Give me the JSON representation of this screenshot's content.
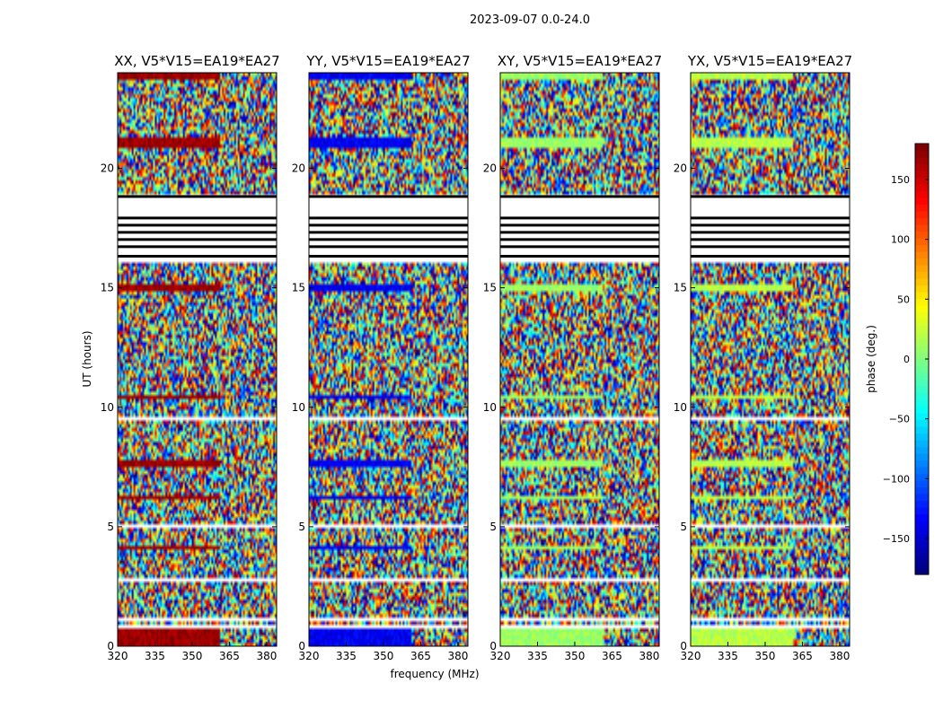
{
  "chart_data": {
    "type": "heatmap",
    "suptitle": "2023-09-07 0.0-24.0",
    "xlabel": "frequency (MHz)",
    "ylabel": "UT (hours)",
    "xlim": [
      320,
      384
    ],
    "ylim": [
      0,
      24
    ],
    "xticks": [
      320,
      335,
      350,
      365,
      380
    ],
    "yticks": [
      0,
      5,
      10,
      15,
      20
    ],
    "colorbar": {
      "label": "phase (deg.)",
      "range": [
        -180,
        180
      ],
      "ticks": [
        -150,
        -100,
        -50,
        0,
        50,
        100,
        150
      ],
      "tick_labels": [
        "−150",
        "−100",
        "−50",
        "0",
        "50",
        "100",
        "150"
      ],
      "colormap": "jet"
    },
    "panels": [
      {
        "title": "XX, V5*V15=EA19*EA27",
        "calibrator_phase_deg": 170
      },
      {
        "title": "YY, V5*V15=EA19*EA27",
        "calibrator_phase_deg": -140
      },
      {
        "title": "XY, V5*V15=EA19*EA27",
        "calibrator_phase_deg": 10
      },
      {
        "title": "YX, V5*V15=EA19*EA27",
        "calibrator_phase_deg": 20
      }
    ],
    "flagged_ut_ranges": [
      [
        16.0,
        18.9
      ],
      [
        18.85,
        18.95
      ],
      [
        10.95,
        11.0
      ],
      [
        9.45,
        9.55
      ],
      [
        7.75,
        7.85
      ],
      [
        5.0,
        5.1
      ],
      [
        2.75,
        2.85
      ],
      [
        1.0,
        1.15
      ],
      [
        0.75,
        0.85
      ]
    ],
    "calibrator_ut_ranges": [
      [
        0.0,
        0.75
      ],
      [
        4.1,
        4.25
      ],
      [
        6.2,
        6.3
      ],
      [
        7.55,
        7.75
      ],
      [
        10.3,
        10.45
      ],
      [
        14.9,
        15.1
      ],
      [
        20.9,
        21.3
      ],
      [
        23.7,
        24.0
      ]
    ]
  }
}
